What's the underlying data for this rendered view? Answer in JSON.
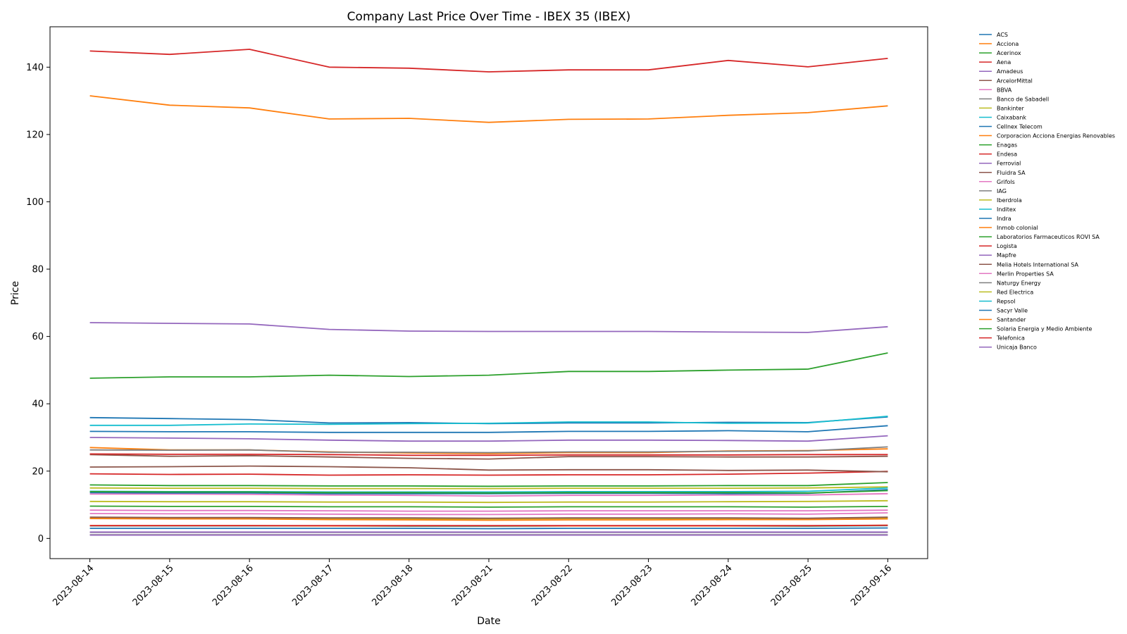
{
  "chart_data": {
    "type": "line",
    "title": "Company Last Price Over Time - IBEX 35 (IBEX)",
    "xlabel": "Date",
    "ylabel": "Price",
    "x": [
      "2023-08-14",
      "2023-08-15",
      "2023-08-16",
      "2023-08-17",
      "2023-08-18",
      "2023-08-21",
      "2023-08-22",
      "2023-08-23",
      "2023-08-24",
      "2023-08-25",
      "2023-09-16"
    ],
    "ylim": [
      -6,
      152
    ],
    "yticks": [
      0,
      20,
      40,
      60,
      80,
      100,
      120,
      140
    ],
    "grid": false,
    "legend_position": "outside-right",
    "series": [
      {
        "name": "ACS",
        "color": "#1f77b4",
        "values": [
          31.8,
          31.7,
          31.7,
          31.5,
          31.5,
          31.5,
          31.8,
          31.8,
          32.0,
          31.7,
          33.5
        ]
      },
      {
        "name": "Acciona",
        "color": "#ff7f0e",
        "values": [
          131.5,
          128.7,
          127.9,
          124.6,
          124.8,
          123.6,
          124.5,
          124.6,
          125.7,
          126.5,
          128.5
        ]
      },
      {
        "name": "Acerinox",
        "color": "#2ca02c",
        "values": [
          9.6,
          9.5,
          9.5,
          9.4,
          9.4,
          9.3,
          9.4,
          9.4,
          9.4,
          9.3,
          9.5
        ]
      },
      {
        "name": "Aena",
        "color": "#d62728",
        "values": [
          144.8,
          143.8,
          145.3,
          140.0,
          139.7,
          138.6,
          139.2,
          139.2,
          142.0,
          140.1,
          142.6
        ]
      },
      {
        "name": "Amadeus",
        "color": "#9467bd",
        "values": [
          64.1,
          63.9,
          63.7,
          62.1,
          61.6,
          61.5,
          61.5,
          61.5,
          61.3,
          61.2,
          62.9
        ]
      },
      {
        "name": "ArcelorMittal",
        "color": "#8c564b",
        "values": [
          24.9,
          24.4,
          24.6,
          24.2,
          23.8,
          23.6,
          24.3,
          24.3,
          24.2,
          24.2,
          24.4
        ]
      },
      {
        "name": "BBVA",
        "color": "#e377c2",
        "values": [
          7.4,
          7.3,
          7.3,
          7.2,
          7.1,
          7.1,
          7.2,
          7.2,
          7.3,
          7.2,
          7.6
        ]
      },
      {
        "name": "Banco de Sabadell",
        "color": "#7f7f7f",
        "values": [
          1.1,
          1.1,
          1.1,
          1.1,
          1.1,
          1.1,
          1.1,
          1.1,
          1.1,
          1.1,
          1.1
        ]
      },
      {
        "name": "Bankinter",
        "color": "#bcbd22",
        "values": [
          6.0,
          5.9,
          5.9,
          5.8,
          5.8,
          5.8,
          5.9,
          5.9,
          5.9,
          5.8,
          6.1
        ]
      },
      {
        "name": "Caixabank",
        "color": "#17becf",
        "values": [
          3.7,
          3.7,
          3.7,
          3.7,
          3.6,
          3.6,
          3.7,
          3.7,
          3.7,
          3.6,
          3.8
        ]
      },
      {
        "name": "Cellnex Telecom",
        "color": "#1f77b4",
        "values": [
          35.9,
          35.6,
          35.3,
          34.3,
          34.4,
          34.1,
          34.3,
          34.3,
          34.5,
          34.4,
          36.1
        ]
      },
      {
        "name": "Corporacion Acciona Energias Renovables",
        "color": "#ff7f0e",
        "values": [
          27.0,
          26.3,
          26.3,
          25.7,
          25.4,
          25.2,
          25.5,
          25.5,
          26.0,
          26.1,
          26.6
        ]
      },
      {
        "name": "Enagas",
        "color": "#2ca02c",
        "values": [
          15.9,
          15.7,
          15.7,
          15.6,
          15.6,
          15.5,
          15.6,
          15.6,
          15.7,
          15.7,
          16.6
        ]
      },
      {
        "name": "Endesa",
        "color": "#d62728",
        "values": [
          19.2,
          19.0,
          19.1,
          18.8,
          18.9,
          18.8,
          18.9,
          18.9,
          19.1,
          19.4,
          19.9
        ]
      },
      {
        "name": "Ferrovial",
        "color": "#9467bd",
        "values": [
          30.0,
          29.8,
          29.6,
          29.2,
          28.9,
          28.9,
          29.2,
          29.2,
          29.1,
          28.9,
          30.5
        ]
      },
      {
        "name": "Fluidra SA",
        "color": "#8c564b",
        "values": [
          21.2,
          21.3,
          21.5,
          21.3,
          21.0,
          20.3,
          20.4,
          20.4,
          20.2,
          20.3,
          19.8
        ]
      },
      {
        "name": "Grifols",
        "color": "#e377c2",
        "values": [
          13.2,
          13.2,
          13.1,
          12.9,
          12.8,
          12.6,
          12.8,
          12.8,
          12.9,
          12.9,
          13.3
        ]
      },
      {
        "name": "IAG",
        "color": "#7f7f7f",
        "values": [
          1.8,
          1.8,
          1.8,
          1.8,
          1.8,
          1.8,
          1.8,
          1.8,
          1.8,
          1.8,
          1.8
        ]
      },
      {
        "name": "Iberdrola",
        "color": "#bcbd22",
        "values": [
          11.0,
          10.9,
          10.9,
          10.8,
          10.8,
          10.7,
          10.8,
          10.8,
          10.9,
          11.0,
          11.2
        ]
      },
      {
        "name": "Inditex",
        "color": "#17becf",
        "values": [
          33.6,
          33.6,
          34.0,
          33.9,
          34.1,
          34.2,
          34.6,
          34.6,
          34.2,
          34.3,
          36.3
        ]
      },
      {
        "name": "Indra",
        "color": "#1f77b4",
        "values": [
          13.6,
          13.5,
          13.5,
          13.3,
          13.3,
          13.3,
          13.4,
          13.4,
          13.3,
          13.4,
          14.5
        ]
      },
      {
        "name": "Inmob colonial",
        "color": "#ff7f0e",
        "values": [
          5.9,
          5.8,
          5.8,
          5.6,
          5.5,
          5.4,
          5.5,
          5.5,
          5.6,
          5.6,
          5.8
        ]
      },
      {
        "name": "Laboratorios Farmaceuticos ROVI SA",
        "color": "#2ca02c",
        "values": [
          47.6,
          48.0,
          48.0,
          48.5,
          48.1,
          48.5,
          49.6,
          49.6,
          50.0,
          50.3,
          55.1
        ]
      },
      {
        "name": "Logista",
        "color": "#d62728",
        "values": [
          25.1,
          25.0,
          25.0,
          24.9,
          24.7,
          24.7,
          24.8,
          24.8,
          24.8,
          24.9,
          24.9
        ]
      },
      {
        "name": "Mapfre",
        "color": "#9467bd",
        "values": [
          1.9,
          1.9,
          1.9,
          1.9,
          1.9,
          1.9,
          1.9,
          1.9,
          1.9,
          1.9,
          1.9
        ]
      },
      {
        "name": "Melia Hotels International SA",
        "color": "#8c564b",
        "values": [
          6.3,
          6.2,
          6.2,
          6.1,
          6.1,
          6.0,
          6.1,
          6.1,
          6.1,
          6.0,
          6.3
        ]
      },
      {
        "name": "Merlin Properties SA",
        "color": "#e377c2",
        "values": [
          8.4,
          8.3,
          8.3,
          8.2,
          8.1,
          8.1,
          8.2,
          8.2,
          8.2,
          8.2,
          8.4
        ]
      },
      {
        "name": "Naturgy Energy",
        "color": "#7f7f7f",
        "values": [
          26.3,
          26.2,
          26.3,
          25.6,
          25.6,
          25.5,
          25.7,
          25.7,
          25.9,
          26.0,
          27.2
        ]
      },
      {
        "name": "Red Electrica",
        "color": "#bcbd22",
        "values": [
          15.0,
          14.9,
          14.9,
          14.8,
          14.8,
          14.8,
          14.9,
          14.9,
          14.9,
          15.0,
          15.3
        ]
      },
      {
        "name": "Repsol",
        "color": "#17becf",
        "values": [
          14.0,
          13.9,
          13.9,
          13.8,
          13.8,
          13.8,
          13.9,
          13.9,
          13.9,
          14.0,
          15.0
        ]
      },
      {
        "name": "Sacyr Valle",
        "color": "#1f77b4",
        "values": [
          3.0,
          3.0,
          3.0,
          3.0,
          3.0,
          2.9,
          3.0,
          3.0,
          3.0,
          3.0,
          3.1
        ]
      },
      {
        "name": "Santander",
        "color": "#ff7f0e",
        "values": [
          3.8,
          3.8,
          3.8,
          3.7,
          3.7,
          3.7,
          3.7,
          3.7,
          3.7,
          3.7,
          3.9
        ]
      },
      {
        "name": "Solaria Energia y Medio Ambiente",
        "color": "#2ca02c",
        "values": [
          13.9,
          13.8,
          13.8,
          13.6,
          13.6,
          13.5,
          13.6,
          13.6,
          13.6,
          13.5,
          14.2
        ]
      },
      {
        "name": "Telefonica",
        "color": "#d62728",
        "values": [
          3.8,
          3.8,
          3.8,
          3.8,
          3.8,
          3.8,
          3.8,
          3.8,
          3.8,
          3.8,
          3.9
        ]
      },
      {
        "name": "Unicaja Banco",
        "color": "#9467bd",
        "values": [
          1.0,
          1.0,
          1.0,
          1.0,
          1.0,
          1.0,
          1.0,
          1.0,
          1.0,
          1.0,
          1.0
        ]
      }
    ]
  }
}
